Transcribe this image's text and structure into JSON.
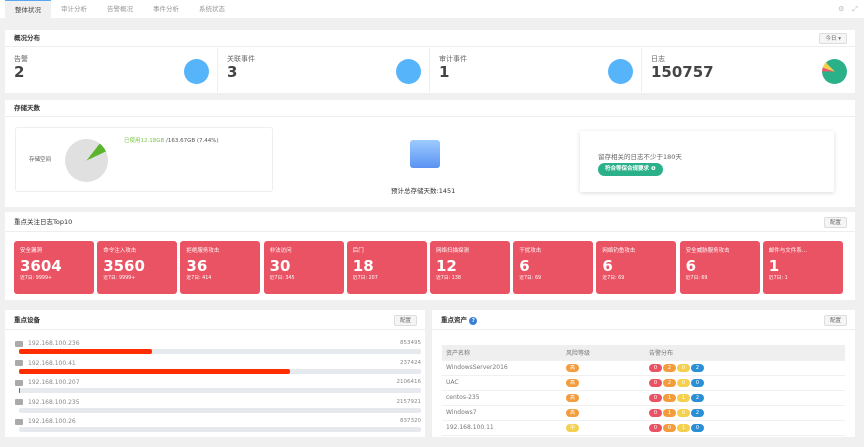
{
  "tabs": [
    "整体状况",
    "审计分析",
    "告警概况",
    "事件分析",
    "系统状态"
  ],
  "overview": {
    "title": "概况分布",
    "period": "今日 ▾",
    "stats": [
      {
        "label": "告警",
        "value": "2"
      },
      {
        "label": "关联事件",
        "value": "3"
      },
      {
        "label": "审计事件",
        "value": "1"
      },
      {
        "label": "日志",
        "value": "150757"
      }
    ]
  },
  "storage": {
    "title": "存储天数",
    "space_label": "存储空间",
    "used": "已使用12.18GB",
    "total": " /163.67GB (7.44%)",
    "used_percent": 7.44,
    "estimate": "预计总存储天数:1451",
    "requirement": "留存相关的日志不少于180天",
    "badge": "符合等保合规要求 ❶"
  },
  "top10": {
    "title": "重点关注日志Top10",
    "config": "配置",
    "cards": [
      {
        "name": "安全漏洞",
        "count": "3604",
        "recent": "近7日:  9999+"
      },
      {
        "name": "命令注入攻击",
        "count": "3560",
        "recent": "近7日:  9999+"
      },
      {
        "name": "拒绝服务攻击",
        "count": "36",
        "recent": "近7日:  414"
      },
      {
        "name": "非法访问",
        "count": "30",
        "recent": "近7日:  345"
      },
      {
        "name": "后门",
        "count": "18",
        "recent": "近7日:  207"
      },
      {
        "name": "网络扫描探测",
        "count": "12",
        "recent": "近7日:  138"
      },
      {
        "name": "干扰攻击",
        "count": "6",
        "recent": "近7日:  69"
      },
      {
        "name": "网络钓鱼攻击",
        "count": "6",
        "recent": "近7日:  69"
      },
      {
        "name": "安全威胁服务攻击",
        "count": "6",
        "recent": "近7日:  69"
      },
      {
        "name": "邮件与文件系...",
        "count": "1",
        "recent": "近7日:  1"
      }
    ]
  },
  "devices": {
    "title": "重点设备",
    "config": "配置",
    "items": [
      {
        "ip": "192.168.100.236",
        "value": "853495",
        "percent": 33
      },
      {
        "ip": "192.168.100.41",
        "value": "237424",
        "percent": 67.5
      },
      {
        "ip": "192.168.100.207",
        "value": "2106416",
        "percent": 0.3
      },
      {
        "ip": "192.168.100.235",
        "value": "2157921",
        "percent": 0
      },
      {
        "ip": "192.168.100.26",
        "value": "837320",
        "percent": 0
      }
    ]
  },
  "assets": {
    "title": "重点资产",
    "config": "配置",
    "headers": [
      "资产名称",
      "风险等级",
      "告警分布"
    ],
    "rows": [
      {
        "name": "WindowsServer2016",
        "risk": "高",
        "alerts": [
          "0",
          "2",
          "0",
          "2"
        ]
      },
      {
        "name": "UAC",
        "risk": "高",
        "alerts": [
          "0",
          "2",
          "0",
          "0"
        ]
      },
      {
        "name": "centos-235",
        "risk": "高",
        "alerts": [
          "0",
          "1",
          "1",
          "2"
        ]
      },
      {
        "name": "Windows7",
        "risk": "高",
        "alerts": [
          "0",
          "1",
          "0",
          "2"
        ]
      },
      {
        "name": "192.168.100.11",
        "risk": "中",
        "alerts": [
          "0",
          "0",
          "1",
          "0"
        ]
      }
    ]
  },
  "colors": {
    "alert": "#ea5364",
    "accent": "#56b4fb",
    "ok": "#2bb18a",
    "bar": "#ff2d00"
  }
}
